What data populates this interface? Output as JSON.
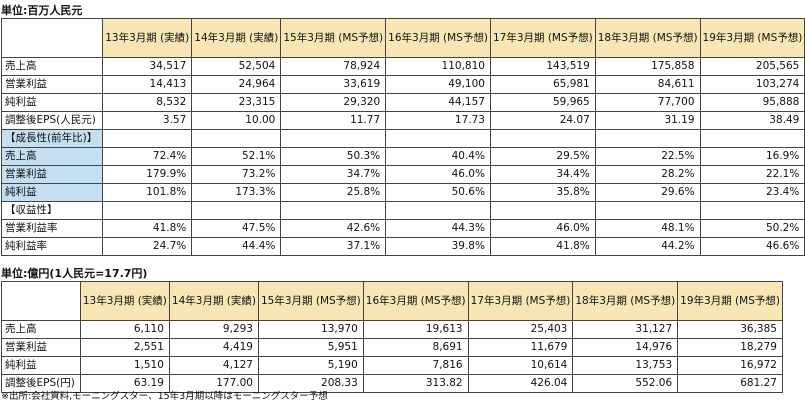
{
  "table1": {
    "unit": "単位:百万人民元",
    "columns": [
      "13年3月期\n(実績)",
      "14年3月期\n(実績)",
      "15年3月期\n(MS予想)",
      "16年3月期\n(MS予想)",
      "17年3月期\n(MS予想)",
      "18年3月期\n(MS予想)",
      "19年3月期\n(MS予想)"
    ],
    "rows": [
      {
        "label": "売上高",
        "values": [
          "34,517",
          "52,504",
          "78,924",
          "110,810",
          "143,519",
          "175,858",
          "205,565"
        ]
      },
      {
        "label": "営業利益",
        "values": [
          "14,413",
          "24,964",
          "33,619",
          "49,100",
          "65,981",
          "84,611",
          "103,274"
        ]
      },
      {
        "label": "純利益",
        "values": [
          "8,532",
          "23,315",
          "29,320",
          "44,157",
          "59,965",
          "77,700",
          "95,888"
        ]
      },
      {
        "label": "調整後EPS(人民元)",
        "values": [
          "3.57",
          "10.00",
          "11.77",
          "17.73",
          "24.07",
          "31.19",
          "38.49"
        ]
      },
      {
        "label": "【成長性(前年比)】",
        "values": [
          "",
          "",
          "",
          "",
          "",
          "",
          ""
        ]
      },
      {
        "label": "売上高",
        "values": [
          "72.4%",
          "52.1%",
          "50.3%",
          "40.4%",
          "29.5%",
          "22.5%",
          "16.9%"
        ]
      },
      {
        "label": "営業利益",
        "values": [
          "179.9%",
          "73.2%",
          "34.7%",
          "46.0%",
          "34.4%",
          "28.2%",
          "22.1%"
        ]
      },
      {
        "label": "純利益",
        "values": [
          "101.8%",
          "173.3%",
          "25.8%",
          "50.6%",
          "35.8%",
          "29.6%",
          "23.4%"
        ]
      },
      {
        "label": "【収益性】",
        "values": [
          "",
          "",
          "",
          "",
          "",
          "",
          ""
        ]
      },
      {
        "label": "営業利益率",
        "values": [
          "41.8%",
          "47.5%",
          "42.6%",
          "44.3%",
          "46.0%",
          "48.1%",
          "50.2%"
        ]
      },
      {
        "label": "純利益率",
        "values": [
          "24.7%",
          "44.4%",
          "37.1%",
          "39.8%",
          "41.8%",
          "44.2%",
          "46.6%"
        ]
      }
    ]
  },
  "table2": {
    "unit": "単位:億円(1人民元=17.7円)",
    "columns": [
      "13年3月期\n(実績)",
      "14年3月期\n(実績)",
      "15年3月期\n(MS予想)",
      "16年3月期\n(MS予想)",
      "17年3月期\n(MS予想)",
      "18年3月期\n(MS予想)",
      "19年3月期\n(MS予想)"
    ],
    "rows": [
      {
        "label": "売上高",
        "values": [
          "6,110",
          "9,293",
          "13,970",
          "19,613",
          "25,403",
          "31,127",
          "36,385"
        ]
      },
      {
        "label": "営業利益",
        "values": [
          "2,551",
          "4,419",
          "5,951",
          "8,691",
          "11,679",
          "14,976",
          "18,279"
        ]
      },
      {
        "label": "純利益",
        "values": [
          "1,510",
          "4,127",
          "5,190",
          "7,816",
          "10,614",
          "13,753",
          "16,972"
        ]
      },
      {
        "label": "調整後EPS(円)",
        "values": [
          "63.19",
          "177.00",
          "208.33",
          "313.82",
          "426.04",
          "552.06",
          "681.27"
        ]
      }
    ]
  },
  "footnote": "※出所:会社資料,モーニングスター、15年3月期以降はモーニングスター予想",
  "colors": {
    "header_bg": "#f8e6b4",
    "highlight_bg": "#c4dff2",
    "border": "#444444"
  }
}
